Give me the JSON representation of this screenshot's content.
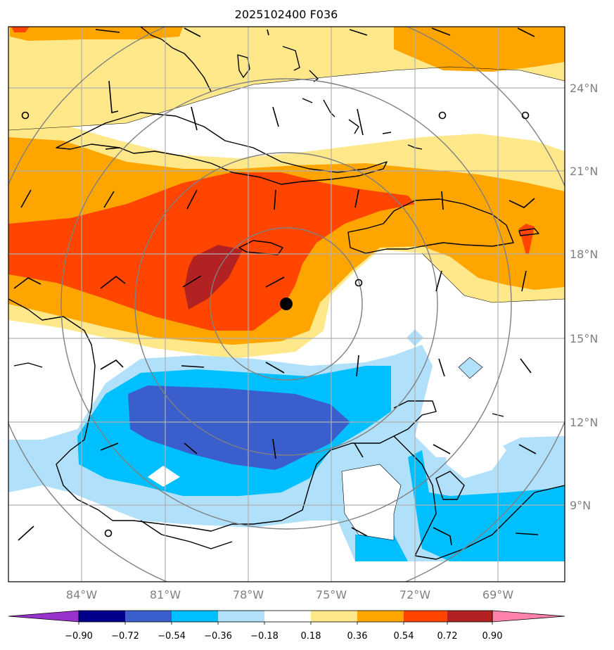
{
  "title": "2025102400 F036",
  "map": {
    "lon_labels": [
      "84°W",
      "81°W",
      "78°W",
      "75°W",
      "72°W",
      "69°W"
    ],
    "lat_labels": [
      "24°N",
      "21°N",
      "18°N",
      "15°N",
      "12°N",
      "9°N"
    ],
    "storm_center_marker": "filled black circle"
  },
  "colorbar": {
    "ticks": [
      "−0.90",
      "−0.72",
      "−0.54",
      "−0.36",
      "−0.18",
      "0.18",
      "0.36",
      "0.54",
      "0.72",
      "0.90"
    ],
    "colors": [
      "#9932cc",
      "#00008b",
      "#3a5fcd",
      "#00bfff",
      "#b0e0fa",
      "#ffffff",
      "#ffe88a",
      "#ffa500",
      "#ff4500",
      "#b22222",
      "#ff82ab"
    ]
  }
}
